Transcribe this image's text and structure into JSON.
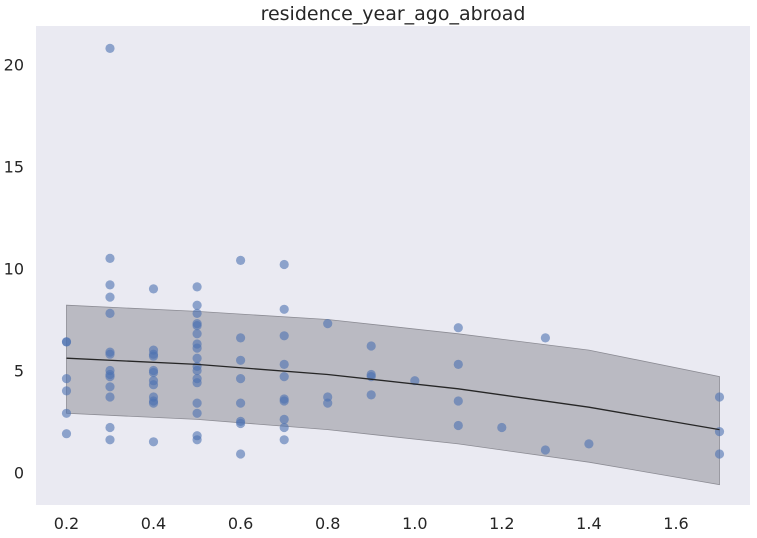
{
  "chart_data": {
    "type": "scatter",
    "title": "residence_year_ago_abroad",
    "xlabel": "",
    "ylabel": "",
    "xlim": [
      0.13,
      1.77
    ],
    "ylim": [
      -1.6,
      21.9
    ],
    "xticks": [
      0.2,
      0.4,
      0.6,
      0.8,
      1.0,
      1.2,
      1.4,
      1.6
    ],
    "xtick_labels": [
      "0.2",
      "0.4",
      "0.6",
      "0.8",
      "1.0",
      "1.2",
      "1.4",
      "1.6"
    ],
    "yticks": [
      0,
      5,
      10,
      15,
      20
    ],
    "ytick_labels": [
      "0",
      "5",
      "10",
      "15",
      "20"
    ],
    "grid": false,
    "background": "#eaeaf2",
    "point_color": "#4c72b0",
    "fit_color": "#262626",
    "band_color": "#a9a9b1",
    "points": [
      {
        "x": 0.2,
        "y": 6.4
      },
      {
        "x": 0.2,
        "y": 6.4
      },
      {
        "x": 0.2,
        "y": 4.6
      },
      {
        "x": 0.2,
        "y": 4.0
      },
      {
        "x": 0.2,
        "y": 2.9
      },
      {
        "x": 0.2,
        "y": 1.9
      },
      {
        "x": 0.3,
        "y": 20.8
      },
      {
        "x": 0.3,
        "y": 10.5
      },
      {
        "x": 0.3,
        "y": 9.2
      },
      {
        "x": 0.3,
        "y": 8.6
      },
      {
        "x": 0.3,
        "y": 7.8
      },
      {
        "x": 0.3,
        "y": 5.9
      },
      {
        "x": 0.3,
        "y": 5.8
      },
      {
        "x": 0.3,
        "y": 5.0
      },
      {
        "x": 0.3,
        "y": 4.8
      },
      {
        "x": 0.3,
        "y": 4.7
      },
      {
        "x": 0.3,
        "y": 4.2
      },
      {
        "x": 0.3,
        "y": 3.7
      },
      {
        "x": 0.3,
        "y": 2.2
      },
      {
        "x": 0.3,
        "y": 1.6
      },
      {
        "x": 0.4,
        "y": 9.0
      },
      {
        "x": 0.4,
        "y": 6.0
      },
      {
        "x": 0.4,
        "y": 5.8
      },
      {
        "x": 0.4,
        "y": 5.7
      },
      {
        "x": 0.4,
        "y": 5.0
      },
      {
        "x": 0.4,
        "y": 4.9
      },
      {
        "x": 0.4,
        "y": 4.5
      },
      {
        "x": 0.4,
        "y": 4.3
      },
      {
        "x": 0.4,
        "y": 3.7
      },
      {
        "x": 0.4,
        "y": 3.5
      },
      {
        "x": 0.4,
        "y": 3.4
      },
      {
        "x": 0.4,
        "y": 1.5
      },
      {
        "x": 0.5,
        "y": 9.1
      },
      {
        "x": 0.5,
        "y": 8.2
      },
      {
        "x": 0.5,
        "y": 7.8
      },
      {
        "x": 0.5,
        "y": 7.3
      },
      {
        "x": 0.5,
        "y": 7.2
      },
      {
        "x": 0.5,
        "y": 6.8
      },
      {
        "x": 0.5,
        "y": 6.3
      },
      {
        "x": 0.5,
        "y": 6.1
      },
      {
        "x": 0.5,
        "y": 5.6
      },
      {
        "x": 0.5,
        "y": 5.2
      },
      {
        "x": 0.5,
        "y": 5.0
      },
      {
        "x": 0.5,
        "y": 4.6
      },
      {
        "x": 0.5,
        "y": 4.4
      },
      {
        "x": 0.5,
        "y": 3.4
      },
      {
        "x": 0.5,
        "y": 2.9
      },
      {
        "x": 0.5,
        "y": 1.8
      },
      {
        "x": 0.5,
        "y": 1.6
      },
      {
        "x": 0.6,
        "y": 10.4
      },
      {
        "x": 0.6,
        "y": 6.6
      },
      {
        "x": 0.6,
        "y": 5.5
      },
      {
        "x": 0.6,
        "y": 4.6
      },
      {
        "x": 0.6,
        "y": 3.4
      },
      {
        "x": 0.6,
        "y": 2.5
      },
      {
        "x": 0.6,
        "y": 2.4
      },
      {
        "x": 0.6,
        "y": 0.9
      },
      {
        "x": 0.7,
        "y": 10.2
      },
      {
        "x": 0.7,
        "y": 8.0
      },
      {
        "x": 0.7,
        "y": 6.7
      },
      {
        "x": 0.7,
        "y": 5.3
      },
      {
        "x": 0.7,
        "y": 4.7
      },
      {
        "x": 0.7,
        "y": 3.6
      },
      {
        "x": 0.7,
        "y": 3.5
      },
      {
        "x": 0.7,
        "y": 2.6
      },
      {
        "x": 0.7,
        "y": 2.2
      },
      {
        "x": 0.7,
        "y": 1.6
      },
      {
        "x": 0.8,
        "y": 7.3
      },
      {
        "x": 0.8,
        "y": 3.7
      },
      {
        "x": 0.8,
        "y": 3.4
      },
      {
        "x": 0.9,
        "y": 6.2
      },
      {
        "x": 0.9,
        "y": 4.8
      },
      {
        "x": 0.9,
        "y": 4.7
      },
      {
        "x": 0.9,
        "y": 3.8
      },
      {
        "x": 1.0,
        "y": 4.5
      },
      {
        "x": 1.1,
        "y": 7.1
      },
      {
        "x": 1.1,
        "y": 5.3
      },
      {
        "x": 1.1,
        "y": 3.5
      },
      {
        "x": 1.1,
        "y": 2.3
      },
      {
        "x": 1.2,
        "y": 2.2
      },
      {
        "x": 1.3,
        "y": 6.6
      },
      {
        "x": 1.3,
        "y": 1.1
      },
      {
        "x": 1.4,
        "y": 1.4
      },
      {
        "x": 1.7,
        "y": 3.7
      },
      {
        "x": 1.7,
        "y": 2.0
      },
      {
        "x": 1.7,
        "y": 0.9
      }
    ],
    "fit_line": {
      "x": [
        0.2,
        0.5,
        0.8,
        1.1,
        1.4,
        1.7
      ],
      "y": [
        5.6,
        5.3,
        4.8,
        4.1,
        3.2,
        2.1
      ]
    },
    "band": {
      "x": [
        0.2,
        0.5,
        0.8,
        1.1,
        1.4,
        1.7
      ],
      "upper": [
        8.2,
        7.9,
        7.5,
        6.8,
        6.0,
        4.7
      ],
      "lower": [
        2.9,
        2.6,
        2.1,
        1.4,
        0.5,
        -0.6
      ]
    }
  }
}
